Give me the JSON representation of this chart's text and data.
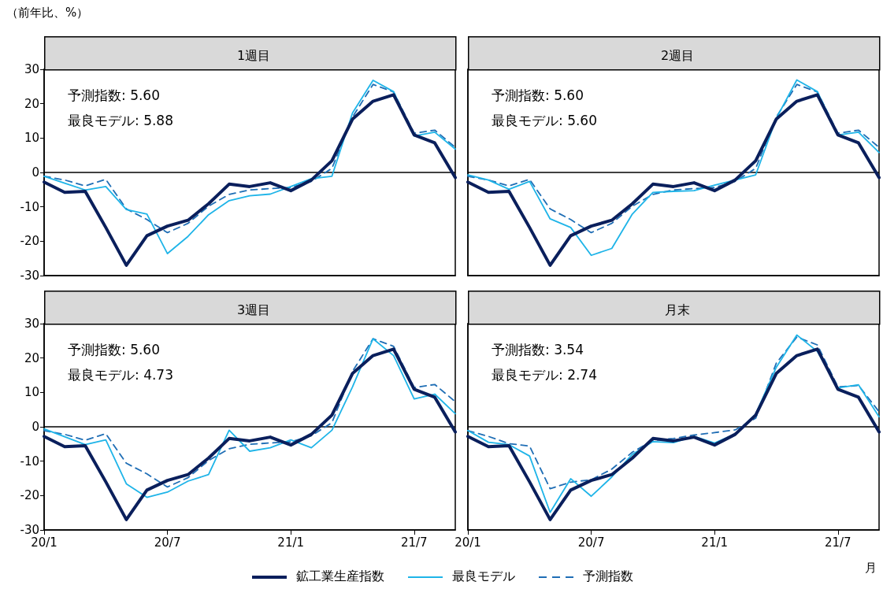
{
  "chart_data": [
    {
      "type": "line",
      "title": "1週目",
      "ylabel": "（前年比、%）",
      "annotations": [
        "予測指数: 5.60",
        "最良モデル: 5.88"
      ],
      "categories": [
        "20/1",
        null,
        null,
        null,
        null,
        null,
        "20/7",
        null,
        null,
        null,
        null,
        null,
        "21/1",
        null,
        null,
        null,
        null,
        null,
        "21/7",
        null,
        null
      ],
      "ylim": [
        -30,
        30
      ],
      "yticks": [
        -30,
        -20,
        -10,
        0,
        10,
        20,
        30
      ],
      "grid": false,
      "marker": "none",
      "legend": "bottom",
      "tick_labels": "y",
      "ref_lines": [
        {
          "axis": "y",
          "value": 0,
          "color": "#000000",
          "line_style": "solid"
        }
      ],
      "series": [
        {
          "name": "鉱工業生産指数",
          "color": "#0a1f5c",
          "line_style": "solid",
          "values": [
            -2.8,
            -5.8,
            -5.5,
            -16.0,
            -27.0,
            -18.4,
            -15.6,
            -13.9,
            -9.1,
            -3.4,
            -4.1,
            -3.0,
            -5.3,
            -2.2,
            3.4,
            15.5,
            20.7,
            22.6,
            10.9,
            8.6,
            -1.5
          ]
        },
        {
          "name": "最良モデル",
          "color": "#1eb4e8",
          "line_style": "solid",
          "values": [
            -1.1,
            -3.1,
            -5.1,
            -4.1,
            -10.8,
            -12.1,
            -23.6,
            -18.6,
            -12.3,
            -8.2,
            -6.8,
            -6.3,
            -4.1,
            -1.8,
            -1.1,
            17.3,
            26.8,
            23.5,
            10.6,
            11.7,
            6.8
          ]
        },
        {
          "name": "予測指数",
          "color": "#1f6eb5",
          "line_style": "dashed",
          "values": [
            -1.1,
            -2.2,
            -3.9,
            -2.0,
            -10.6,
            -13.7,
            -17.5,
            -14.8,
            -9.8,
            -6.4,
            -5.1,
            -4.7,
            -4.4,
            -2.6,
            1.2,
            16.1,
            25.6,
            23.4,
            11.4,
            12.3,
            7.3
          ]
        }
      ]
    },
    {
      "type": "line",
      "title": "2週目",
      "annotations": [
        "予測指数: 5.60",
        "最良モデル: 5.60"
      ],
      "categories": [
        "20/1",
        null,
        null,
        null,
        null,
        null,
        "20/7",
        null,
        null,
        null,
        null,
        null,
        "21/1",
        null,
        null,
        null,
        null,
        null,
        "21/7",
        null,
        null
      ],
      "ylim": [
        -30,
        30
      ],
      "yticks": [
        -30,
        -20,
        -10,
        0,
        10,
        20,
        30
      ],
      "grid": false,
      "marker": "none",
      "legend": "bottom",
      "tick_labels": false,
      "ref_lines": [
        {
          "axis": "y",
          "value": 0,
          "color": "#000000",
          "line_style": "solid"
        }
      ],
      "series": [
        {
          "name": "鉱工業生産指数",
          "color": "#0a1f5c",
          "line_style": "solid",
          "values": [
            -2.8,
            -5.8,
            -5.5,
            -16.0,
            -27.0,
            -18.4,
            -15.6,
            -13.9,
            -9.1,
            -3.4,
            -4.1,
            -3.0,
            -5.3,
            -2.2,
            3.4,
            15.5,
            20.7,
            22.6,
            10.9,
            8.6,
            -1.5
          ]
        },
        {
          "name": "最良モデル",
          "color": "#1eb4e8",
          "line_style": "solid",
          "values": [
            -0.7,
            -2.2,
            -4.9,
            -2.6,
            -13.5,
            -16.0,
            -24.1,
            -22.1,
            -12.1,
            -5.8,
            -5.5,
            -5.3,
            -3.7,
            -2.2,
            -0.7,
            15.7,
            26.9,
            23.5,
            10.9,
            11.7,
            5.8
          ]
        },
        {
          "name": "予測指数",
          "color": "#1f6eb5",
          "line_style": "dashed",
          "values": [
            -1.1,
            -2.2,
            -3.9,
            -2.0,
            -10.6,
            -13.7,
            -17.5,
            -14.8,
            -9.8,
            -6.4,
            -5.1,
            -4.7,
            -4.4,
            -2.6,
            1.2,
            16.1,
            25.6,
            23.4,
            11.4,
            12.3,
            7.3
          ]
        }
      ]
    },
    {
      "type": "line",
      "title": "3週目",
      "annotations": [
        "予測指数: 5.60",
        "最良モデル: 4.73"
      ],
      "categories": [
        "20/1",
        null,
        null,
        null,
        null,
        null,
        "20/7",
        null,
        null,
        null,
        null,
        null,
        "21/1",
        null,
        null,
        null,
        null,
        null,
        "21/7",
        null,
        null
      ],
      "ylim": [
        -30,
        30
      ],
      "yticks": [
        -30,
        -20,
        -10,
        0,
        10,
        20,
        30
      ],
      "grid": false,
      "marker": "none",
      "legend": "bottom",
      "ref_lines": [
        {
          "axis": "y",
          "value": 0,
          "color": "#000000",
          "line_style": "solid"
        }
      ],
      "series": [
        {
          "name": "鉱工業生産指数",
          "color": "#0a1f5c",
          "line_style": "solid",
          "values": [
            -2.8,
            -5.8,
            -5.5,
            -16.0,
            -27.0,
            -18.4,
            -15.6,
            -13.9,
            -9.1,
            -3.4,
            -4.1,
            -3.0,
            -5.3,
            -2.2,
            3.4,
            15.5,
            20.7,
            22.6,
            10.9,
            8.6,
            -1.5
          ]
        },
        {
          "name": "最良モデル",
          "color": "#1eb4e8",
          "line_style": "solid",
          "values": [
            -0.6,
            -2.9,
            -5.2,
            -3.8,
            -16.6,
            -20.5,
            -19.0,
            -15.8,
            -13.9,
            -1.0,
            -7.1,
            -6.1,
            -3.8,
            -6.1,
            -1.0,
            11.6,
            25.6,
            20.7,
            8.1,
            9.5,
            3.8
          ]
        },
        {
          "name": "予測指数",
          "color": "#1f6eb5",
          "line_style": "dashed",
          "values": [
            -1.1,
            -2.2,
            -3.9,
            -2.0,
            -10.6,
            -13.7,
            -17.5,
            -14.8,
            -9.8,
            -6.4,
            -5.1,
            -4.7,
            -4.4,
            -2.6,
            1.2,
            16.1,
            25.6,
            23.4,
            11.4,
            12.3,
            7.3
          ]
        }
      ]
    },
    {
      "type": "line",
      "title": "月末",
      "xlabel": "月",
      "annotations": [
        "予測指数: 3.54",
        "最良モデル: 2.74"
      ],
      "categories": [
        "20/1",
        null,
        null,
        null,
        null,
        null,
        "20/7",
        null,
        null,
        null,
        null,
        null,
        "21/1",
        null,
        null,
        null,
        null,
        null,
        "21/7",
        null,
        null
      ],
      "ylim": [
        -30,
        30
      ],
      "yticks": [
        -30,
        -20,
        -10,
        0,
        10,
        20,
        30
      ],
      "grid": false,
      "marker": "none",
      "legend": "bottom",
      "tick_labels": "x",
      "ref_lines": [
        {
          "axis": "y",
          "value": 0,
          "color": "#000000",
          "line_style": "solid"
        }
      ],
      "series": [
        {
          "name": "鉱工業生産指数",
          "color": "#0a1f5c",
          "line_style": "solid",
          "values": [
            -2.8,
            -5.8,
            -5.5,
            -16.0,
            -27.0,
            -18.4,
            -15.6,
            -13.9,
            -9.1,
            -3.4,
            -4.1,
            -3.0,
            -5.3,
            -2.2,
            3.4,
            15.5,
            20.7,
            22.6,
            10.9,
            8.6,
            -1.5
          ]
        },
        {
          "name": "最良モデル",
          "color": "#1eb4e8",
          "line_style": "solid",
          "values": [
            -1.1,
            -4.5,
            -5.2,
            -8.5,
            -24.9,
            -15.1,
            -20.2,
            -14.6,
            -8.0,
            -4.3,
            -4.6,
            -2.8,
            -4.7,
            -2.1,
            3.7,
            17.3,
            26.7,
            21.9,
            11.3,
            12.2,
            2.9
          ]
        },
        {
          "name": "予測指数",
          "color": "#1f6eb5",
          "line_style": "dashed",
          "values": [
            -1.1,
            -2.8,
            -4.9,
            -5.6,
            -18.0,
            -16.1,
            -15.4,
            -12.3,
            -7.4,
            -4.0,
            -3.4,
            -2.4,
            -1.7,
            -0.9,
            2.5,
            18.5,
            26.1,
            23.8,
            11.6,
            12.0,
            4.4
          ]
        }
      ]
    }
  ]
}
